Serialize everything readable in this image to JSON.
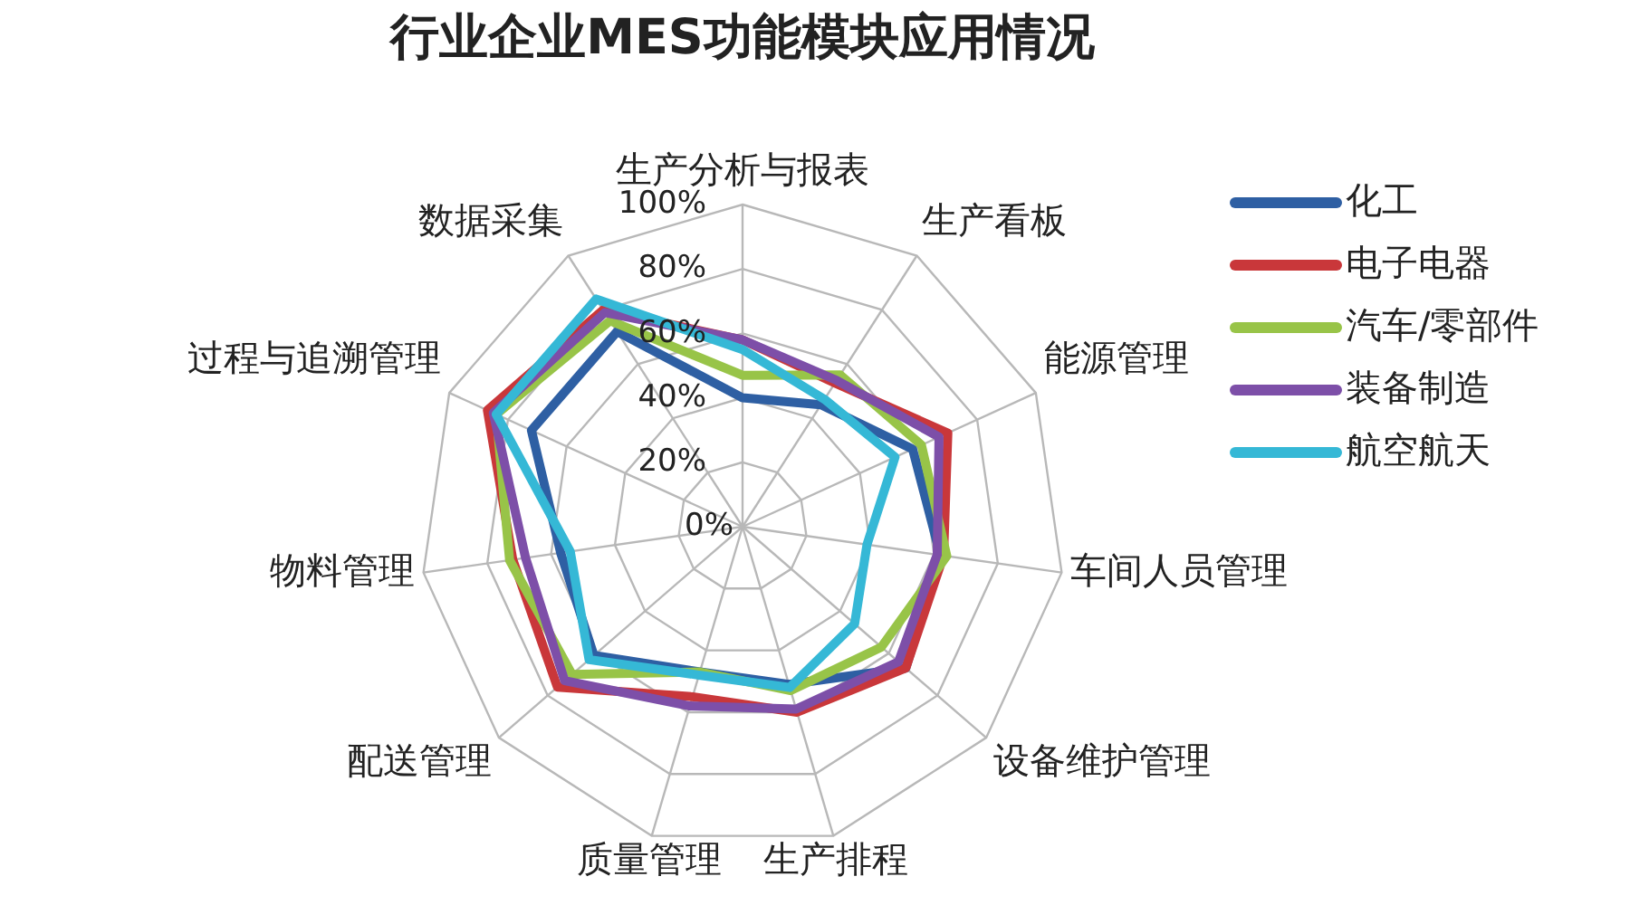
{
  "chart_data": {
    "type": "radar",
    "title": "行业企业MES功能模块应用情况",
    "categories": [
      "生产分析与报表",
      "生产看板",
      "能源管理",
      "车间人员管理",
      "设备维护管理",
      "生产排程",
      "质量管理",
      "配送管理",
      "物料管理",
      "过程与追溯管理",
      "数据采集"
    ],
    "series": [
      {
        "name": "化工",
        "color": "#2e5fa3",
        "values": [
          40,
          45,
          58,
          62,
          67,
          51,
          47,
          61,
          57,
          72,
          72
        ]
      },
      {
        "name": "电子电器",
        "color": "#c9373a",
        "values": [
          58,
          53,
          70,
          63,
          67,
          60,
          55,
          76,
          72,
          87,
          80
        ]
      },
      {
        "name": "汽车/零部件",
        "color": "#98c448",
        "values": [
          47,
          56,
          61,
          64,
          57,
          53,
          47,
          70,
          73,
          84,
          76
        ]
      },
      {
        "name": "装备制造",
        "color": "#7d4fa8",
        "values": [
          58,
          54,
          67,
          61,
          64,
          59,
          58,
          73,
          68,
          85,
          79
        ]
      },
      {
        "name": "航空航天",
        "color": "#35b8d6",
        "values": [
          55,
          47,
          52,
          39,
          46,
          52,
          48,
          63,
          54,
          84,
          84
        ]
      }
    ],
    "ylim": [
      0,
      100
    ],
    "yticks": [
      {
        "value": 0,
        "label": "0%"
      },
      {
        "value": 20,
        "label": "20%"
      },
      {
        "value": 40,
        "label": "40%"
      },
      {
        "value": 60,
        "label": "60%"
      },
      {
        "value": 80,
        "label": "80%"
      },
      {
        "value": 100,
        "label": "100%"
      }
    ],
    "grid": true,
    "legend": "right"
  }
}
